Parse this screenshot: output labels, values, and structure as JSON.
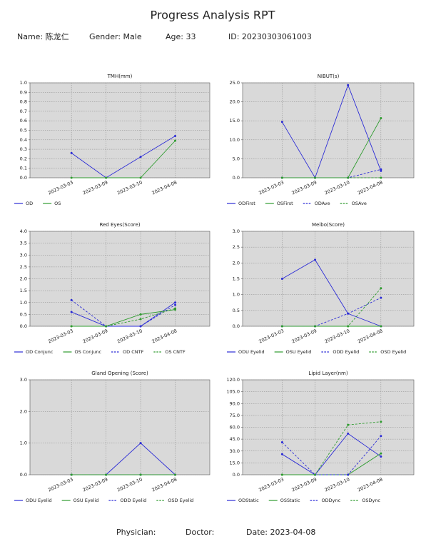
{
  "header": {
    "title": "Progress Analysis RPT",
    "name": "Name: 陈龙仁",
    "gender": "Gender: Male",
    "age": "Age: 33",
    "id": "ID: 20230303061003"
  },
  "chart_data": [
    {
      "type": "line",
      "title": "TMH(mm)",
      "categories": [
        "2023-03-03",
        "2023-03-09",
        "2023-03-10",
        "2023-04-08"
      ],
      "ylim": [
        0,
        1
      ],
      "yticks": [
        {
          "value": 0,
          "label": "0.0"
        },
        {
          "value": 0.1,
          "label": "0.1"
        },
        {
          "value": 0.2,
          "label": "0.2"
        },
        {
          "value": 0.3,
          "label": "0.3"
        },
        {
          "value": 0.4,
          "label": "0.4"
        },
        {
          "value": 0.5,
          "label": "0.5"
        },
        {
          "value": 0.6,
          "label": "0.6"
        },
        {
          "value": 0.7,
          "label": "0.7"
        },
        {
          "value": 0.8,
          "label": "0.8"
        },
        {
          "value": 0.9,
          "label": "0.9"
        },
        {
          "value": 1,
          "label": "1.0"
        }
      ],
      "grid": true,
      "series": [
        {
          "name": "OD",
          "color": "#2b2bd6",
          "line_style": "solid",
          "values": [
            0.26,
            0,
            0.22,
            0.44
          ]
        },
        {
          "name": "OS",
          "color": "#2e9b2e",
          "line_style": "solid",
          "values": [
            0,
            0,
            0,
            0.39
          ]
        }
      ]
    },
    {
      "type": "line",
      "title": "NIBUT(s)",
      "categories": [
        "2023-03-03",
        "2023-03-09",
        "2023-03-10",
        "2023-04-08"
      ],
      "ylim": [
        0,
        25
      ],
      "yticks": [
        {
          "value": 0,
          "label": "0.0"
        },
        {
          "value": 5,
          "label": "5.0"
        },
        {
          "value": 10,
          "label": "10.0"
        },
        {
          "value": 15,
          "label": "15.0"
        },
        {
          "value": 20,
          "label": "20.0"
        },
        {
          "value": 25,
          "label": "25.0"
        }
      ],
      "grid": true,
      "series": [
        {
          "name": "ODFirst",
          "color": "#2b2bd6",
          "line_style": "solid",
          "values": [
            14.7,
            0,
            24.4,
            1.8
          ]
        },
        {
          "name": "OSFirst",
          "color": "#2e9b2e",
          "line_style": "solid",
          "values": [
            0,
            0,
            0,
            15.7
          ]
        },
        {
          "name": "ODAve",
          "color": "#2b2bd6",
          "line_style": "dashed",
          "values": [
            0,
            0,
            0,
            2.2
          ]
        },
        {
          "name": "OSAve",
          "color": "#2e9b2e",
          "line_style": "dashed",
          "values": [
            0,
            0,
            0,
            0
          ]
        }
      ]
    },
    {
      "type": "line",
      "title": "Red Eyes(Score)",
      "categories": [
        "2023-03-03",
        "2023-03-09",
        "2023-03-10",
        "2023-04-08"
      ],
      "ylim": [
        0,
        4
      ],
      "yticks": [
        {
          "value": 0,
          "label": "0.0"
        },
        {
          "value": 0.5,
          "label": "0.5"
        },
        {
          "value": 1,
          "label": "1.0"
        },
        {
          "value": 1.5,
          "label": "1.5"
        },
        {
          "value": 2,
          "label": "2.0"
        },
        {
          "value": 2.5,
          "label": "2.5"
        },
        {
          "value": 3,
          "label": "3.0"
        },
        {
          "value": 3.5,
          "label": "3.5"
        },
        {
          "value": 4,
          "label": "4.0"
        }
      ],
      "grid": true,
      "series": [
        {
          "name": "OD Conjunc",
          "color": "#2b2bd6",
          "line_style": "solid",
          "values": [
            0.6,
            0,
            0,
            1
          ]
        },
        {
          "name": "OS Conjunc",
          "color": "#2e9b2e",
          "line_style": "solid",
          "values": [
            0,
            0,
            0.5,
            0.7
          ]
        },
        {
          "name": "OD CNTF",
          "color": "#2b2bd6",
          "line_style": "dashed",
          "values": [
            1.1,
            0,
            0,
            0.9
          ]
        },
        {
          "name": "OS CNTF",
          "color": "#2e9b2e",
          "line_style": "dashed",
          "values": [
            0,
            0,
            0.3,
            0.75
          ]
        }
      ]
    },
    {
      "type": "line",
      "title": "Meibo(Score)",
      "categories": [
        "2023-03-03",
        "2023-03-09",
        "2023-03-10",
        "2023-04-08"
      ],
      "ylim": [
        0,
        3
      ],
      "yticks": [
        {
          "value": 0,
          "label": "0.0"
        },
        {
          "value": 0.5,
          "label": "0.5"
        },
        {
          "value": 1,
          "label": "1.0"
        },
        {
          "value": 1.5,
          "label": "1.5"
        },
        {
          "value": 2,
          "label": "2.0"
        },
        {
          "value": 2.5,
          "label": "2.5"
        },
        {
          "value": 3,
          "label": "3.0"
        }
      ],
      "grid": true,
      "series": [
        {
          "name": "ODU Eyelid",
          "color": "#2b2bd6",
          "line_style": "solid",
          "values": [
            1.5,
            2.1,
            0.4,
            0
          ]
        },
        {
          "name": "OSU Eyelid",
          "color": "#2e9b2e",
          "line_style": "solid",
          "values": [
            0,
            0,
            0,
            0
          ]
        },
        {
          "name": "ODD Eyelid",
          "color": "#2b2bd6",
          "line_style": "dashed",
          "values": [
            0,
            0,
            0.4,
            0.9
          ]
        },
        {
          "name": "OSD Eyelid",
          "color": "#2e9b2e",
          "line_style": "dashed",
          "values": [
            0,
            0,
            0,
            1.2
          ]
        }
      ]
    },
    {
      "type": "line",
      "title": "Gland Opening (Score)",
      "categories": [
        "2023-03-03",
        "2023-03-09",
        "2023-03-10",
        "2023-04-08"
      ],
      "ylim": [
        0,
        3
      ],
      "yticks": [
        {
          "value": 0,
          "label": "0.0"
        },
        {
          "value": 1,
          "label": "1.0"
        },
        {
          "value": 2,
          "label": "2.0"
        },
        {
          "value": 3,
          "label": "3.0"
        }
      ],
      "grid": true,
      "series": [
        {
          "name": "ODU Eyelid",
          "color": "#2b2bd6",
          "line_style": "solid",
          "values": [
            0,
            0,
            1,
            0
          ]
        },
        {
          "name": "OSU Eyelid",
          "color": "#2e9b2e",
          "line_style": "solid",
          "values": [
            0,
            0,
            0,
            0
          ]
        },
        {
          "name": "ODD Eyelid",
          "color": "#2b2bd6",
          "line_style": "dashed",
          "values": [
            0,
            0,
            0,
            0
          ]
        },
        {
          "name": "OSD Eyelid",
          "color": "#2e9b2e",
          "line_style": "dashed",
          "values": [
            0,
            0,
            0,
            0
          ]
        }
      ]
    },
    {
      "type": "line",
      "title": "Lipid Layer(nm)",
      "categories": [
        "2023-03-03",
        "2023-03-09",
        "2023-03-10",
        "2023-04-08"
      ],
      "ylim": [
        0,
        120
      ],
      "yticks": [
        {
          "value": 0,
          "label": "0.0"
        },
        {
          "value": 15,
          "label": "15.0"
        },
        {
          "value": 30,
          "label": "30.0"
        },
        {
          "value": 45,
          "label": "45.0"
        },
        {
          "value": 60,
          "label": "60.0"
        },
        {
          "value": 75,
          "label": "75.0"
        },
        {
          "value": 90,
          "label": "90.0"
        },
        {
          "value": 105,
          "label": "105.0"
        },
        {
          "value": 120,
          "label": "120.0"
        }
      ],
      "grid": true,
      "series": [
        {
          "name": "ODStatic",
          "color": "#2b2bd6",
          "line_style": "solid",
          "values": [
            26,
            0,
            52,
            23
          ]
        },
        {
          "name": "OSStatic",
          "color": "#2e9b2e",
          "line_style": "solid",
          "values": [
            0,
            0,
            0,
            27
          ]
        },
        {
          "name": "ODDync",
          "color": "#2b2bd6",
          "line_style": "dashed",
          "values": [
            41,
            0,
            0,
            49
          ]
        },
        {
          "name": "OSDync",
          "color": "#2e9b2e",
          "line_style": "dashed",
          "values": [
            0,
            0,
            63,
            67
          ]
        }
      ]
    }
  ],
  "footer": {
    "physician": "Physician:",
    "doctor": "Doctor:",
    "date": "Date: 2023-04-08"
  }
}
